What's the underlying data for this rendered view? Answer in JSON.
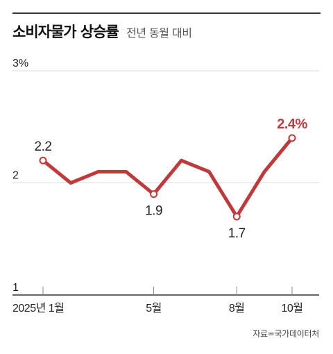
{
  "header": {
    "title": "소비자물가 상승률",
    "subtitle": "전년 동월 대비"
  },
  "chart_data": {
    "type": "line",
    "x": [
      "2025-01",
      "2025-02",
      "2025-03",
      "2025-04",
      "2025-05",
      "2025-06",
      "2025-07",
      "2025-08",
      "2025-09",
      "2025-10"
    ],
    "values": [
      2.2,
      2.0,
      2.1,
      2.1,
      1.9,
      2.2,
      2.1,
      1.7,
      2.1,
      2.4
    ],
    "ylim": [
      1,
      3
    ],
    "y_ticks": [
      {
        "value": 3,
        "label": "3%"
      },
      {
        "value": 2,
        "label": "2"
      },
      {
        "value": 1,
        "label": "1"
      }
    ],
    "x_ticks": [
      {
        "index": 0,
        "label": "2025년 1월"
      },
      {
        "index": 4,
        "label": "5월"
      },
      {
        "index": 7,
        "label": "8월"
      },
      {
        "index": 9,
        "label": "10월"
      }
    ],
    "data_labels": [
      {
        "index": 0,
        "text": "2.2",
        "position": "above",
        "highlight": false
      },
      {
        "index": 4,
        "text": "1.9",
        "position": "below",
        "highlight": false
      },
      {
        "index": 7,
        "text": "1.7",
        "position": "below",
        "highlight": false
      },
      {
        "index": 9,
        "text": "2.4%",
        "position": "above",
        "highlight": true
      }
    ],
    "marker_indices": [
      0,
      4,
      7,
      9
    ],
    "grid": true,
    "colors": {
      "line": "#c0393b",
      "highlight_label": "#c0393b",
      "grid": "#d9d9d9",
      "axis": "#333333",
      "text": "#222222"
    }
  },
  "source": "자료=국가데이터처"
}
